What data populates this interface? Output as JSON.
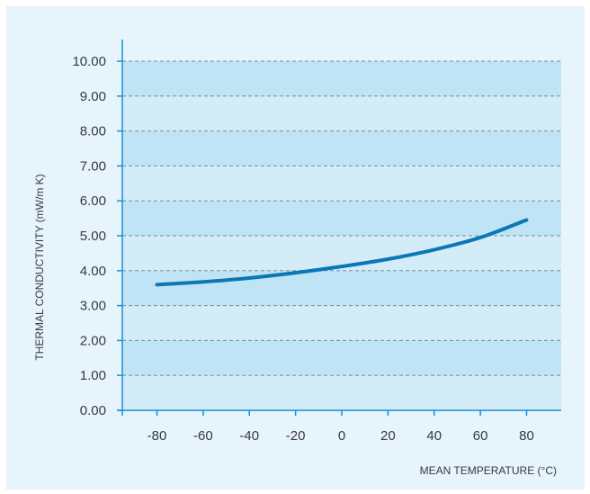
{
  "chart_data": {
    "type": "line",
    "title": "",
    "xlabel": "MEAN TEMPERATURE (°C)",
    "ylabel": "THERMAL CONDUCTIVITY (mW/m K)",
    "xlim": [
      -95,
      95
    ],
    "ylim": [
      0,
      10
    ],
    "x_ticks": [
      "-80",
      "-60",
      "-40",
      "-20",
      "0",
      "20",
      "40",
      "60",
      "80"
    ],
    "y_ticks": [
      "0.00",
      "1.00",
      "2.00",
      "3.00",
      "4.00",
      "5.00",
      "6.00",
      "7.00",
      "8.00",
      "9.00",
      "10.00"
    ],
    "grid": true,
    "series": [
      {
        "x": [
          -80,
          -60,
          -40,
          -20,
          0,
          20,
          40,
          60,
          80
        ],
        "y": [
          3.6,
          3.68,
          3.79,
          3.94,
          4.12,
          4.33,
          4.6,
          4.95,
          5.45
        ]
      }
    ],
    "colors": {
      "background": "#e6f4fb",
      "band_light": "#d4ecf8",
      "band_dark": "#bfe4f5",
      "line": "#0b77b5",
      "axis": "#1a8fd4"
    }
  }
}
